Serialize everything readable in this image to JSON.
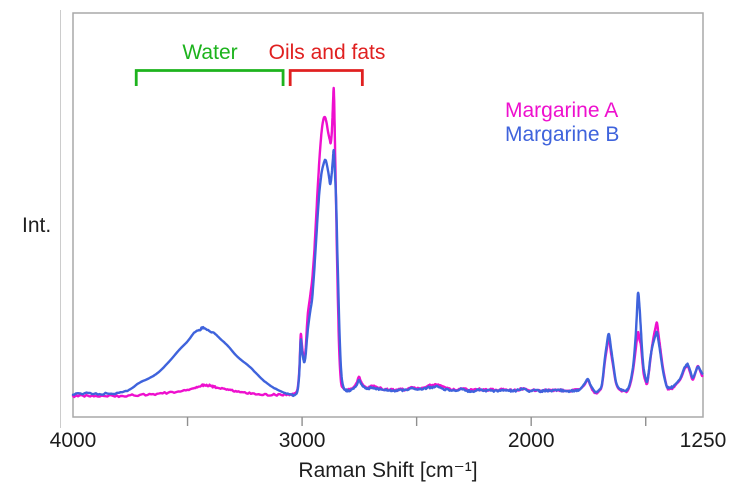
{
  "figure": {
    "background": "#ffffff",
    "plot_border_color": "#a8a8a8",
    "tick_color": "#8f8f8f",
    "text_color": "#1e1e1e",
    "side_rule_color": "#cccccc"
  },
  "annotations": {
    "water": {
      "label": "Water",
      "color": "#1db31d",
      "range_cm1": [
        3724,
        3083
      ]
    },
    "oils_fats": {
      "label": "Oils and fats",
      "color": "#e02020",
      "range_cm1": [
        3052,
        2737
      ]
    }
  },
  "legend": {
    "position": "upper-right",
    "items": [
      {
        "label": "Margarine A",
        "color": "#ee10ce"
      },
      {
        "label": "Margarine B",
        "color": "#3f63dc"
      }
    ]
  },
  "chart_data": {
    "type": "line",
    "title": "",
    "xlabel": "Raman Shift [cm⁻¹]",
    "ylabel": "Int.",
    "grid": false,
    "x_axis": {
      "min": 1250,
      "max": 4000,
      "reversed": true,
      "labeled_ticks": [
        4000,
        3000,
        2000,
        1250
      ],
      "minor_ticks": [
        3500,
        3000,
        2500,
        2000,
        1500
      ]
    },
    "y_axis": {
      "min": 0,
      "max": 105,
      "ticks": "none",
      "note": "relative intensity, % of Margarine A max at 2862 cm-1"
    },
    "series": [
      {
        "name": "Margarine A",
        "color": "#ee10ce",
        "noise_seed": 3,
        "points": [
          [
            4000,
            0.2
          ],
          [
            3950,
            0.4
          ],
          [
            3900,
            0.2
          ],
          [
            3850,
            0.4
          ],
          [
            3800,
            0.3
          ],
          [
            3750,
            0.5
          ],
          [
            3700,
            0.7
          ],
          [
            3650,
            0.9
          ],
          [
            3600,
            1.3
          ],
          [
            3550,
            1.7
          ],
          [
            3500,
            2.3
          ],
          [
            3470,
            2.9
          ],
          [
            3445,
            3.5
          ],
          [
            3425,
            3.9
          ],
          [
            3400,
            3.6
          ],
          [
            3380,
            3.2
          ],
          [
            3350,
            2.8
          ],
          [
            3320,
            2.3
          ],
          [
            3290,
            1.9
          ],
          [
            3250,
            1.4
          ],
          [
            3210,
            1.1
          ],
          [
            3170,
            0.9
          ],
          [
            3130,
            0.7
          ],
          [
            3090,
            0.7
          ],
          [
            3050,
            0.9
          ],
          [
            3034,
            1.1
          ],
          [
            3020,
            2.6
          ],
          [
            3012,
            9
          ],
          [
            3006,
            20.1
          ],
          [
            3001,
            17
          ],
          [
            2995,
            13.5
          ],
          [
            2990,
            12.6
          ],
          [
            2984,
            16
          ],
          [
            2976,
            26
          ],
          [
            2966,
            32
          ],
          [
            2956,
            38
          ],
          [
            2946,
            48
          ],
          [
            2936,
            62
          ],
          [
            2926,
            75
          ],
          [
            2916,
            85
          ],
          [
            2908,
            89.5
          ],
          [
            2901,
            90.6
          ],
          [
            2894,
            89
          ],
          [
            2886,
            85.5
          ],
          [
            2879,
            83.2
          ],
          [
            2875,
            82.2
          ],
          [
            2870,
            86
          ],
          [
            2866,
            93
          ],
          [
            2862,
            100
          ],
          [
            2859,
            92
          ],
          [
            2855,
            76
          ],
          [
            2850,
            55
          ],
          [
            2845,
            36
          ],
          [
            2838,
            15
          ],
          [
            2830,
            4.8
          ],
          [
            2820,
            2.9
          ],
          [
            2808,
            2.3
          ],
          [
            2795,
            2.4
          ],
          [
            2778,
            3.0
          ],
          [
            2762,
            4.6
          ],
          [
            2752,
            6.5
          ],
          [
            2742,
            4.8
          ],
          [
            2730,
            3.6
          ],
          [
            2715,
            3.0
          ],
          [
            2700,
            3.3
          ],
          [
            2686,
            3.6
          ],
          [
            2665,
            3.0
          ],
          [
            2645,
            2.6
          ],
          [
            2620,
            2.4
          ],
          [
            2595,
            2.3
          ],
          [
            2570,
            2.4
          ],
          [
            2545,
            2.5
          ],
          [
            2520,
            3.2
          ],
          [
            2498,
            2.7
          ],
          [
            2476,
            2.9
          ],
          [
            2452,
            3.5
          ],
          [
            2432,
            3.9
          ],
          [
            2405,
            3.9
          ],
          [
            2380,
            3.2
          ],
          [
            2352,
            2.6
          ],
          [
            2326,
            2.3
          ],
          [
            2304,
            2.7
          ],
          [
            2280,
            2.4
          ],
          [
            2255,
            2.3
          ],
          [
            2230,
            2.5
          ],
          [
            2205,
            2.2
          ],
          [
            2180,
            2.4
          ],
          [
            2155,
            2.3
          ],
          [
            2130,
            2.4
          ],
          [
            2105,
            2.3
          ],
          [
            2080,
            2.2
          ],
          [
            2055,
            2.4
          ],
          [
            2030,
            2.7
          ],
          [
            2008,
            2.1
          ],
          [
            1985,
            2.2
          ],
          [
            1960,
            2.0
          ],
          [
            1935,
            2.2
          ],
          [
            1910,
            2.1
          ],
          [
            1885,
            2.3
          ],
          [
            1860,
            2.1
          ],
          [
            1835,
            2.0
          ],
          [
            1812,
            2.2
          ],
          [
            1790,
            2.4
          ],
          [
            1768,
            3.9
          ],
          [
            1753,
            5.5
          ],
          [
            1742,
            3.8
          ],
          [
            1733,
            2.4
          ],
          [
            1719,
            1.2
          ],
          [
            1703,
            2.0
          ],
          [
            1691,
            3.8
          ],
          [
            1679,
            11.0
          ],
          [
            1669,
            16.0
          ],
          [
            1661,
            19.1
          ],
          [
            1652,
            14.5
          ],
          [
            1643,
            10.4
          ],
          [
            1630,
            4.6
          ],
          [
            1614,
            2.3
          ],
          [
            1596,
            2.1
          ],
          [
            1579,
            2.0
          ],
          [
            1564,
            5.2
          ],
          [
            1552,
            10.4
          ],
          [
            1542,
            16.5
          ],
          [
            1534,
            21.0
          ],
          [
            1527,
            18.5
          ],
          [
            1521,
            16.8
          ],
          [
            1514,
            11.0
          ],
          [
            1508,
            7.1
          ],
          [
            1500,
            5.0
          ],
          [
            1494,
            4.3
          ],
          [
            1487,
            7.5
          ],
          [
            1481,
            11.3
          ],
          [
            1472,
            16.5
          ],
          [
            1464,
            20.1
          ],
          [
            1457,
            22.5
          ],
          [
            1451,
            24.0
          ],
          [
            1444,
            20.0
          ],
          [
            1438,
            16.8
          ],
          [
            1429,
            11.5
          ],
          [
            1421,
            7.8
          ],
          [
            1411,
            4.2
          ],
          [
            1403,
            2.7
          ],
          [
            1392,
            2.8
          ],
          [
            1381,
            3.0
          ],
          [
            1366,
            4.2
          ],
          [
            1351,
            5.5
          ],
          [
            1341,
            7.0
          ],
          [
            1333,
            8.7
          ],
          [
            1323,
            9.8
          ],
          [
            1316,
            10.0
          ],
          [
            1306,
            7.8
          ],
          [
            1295,
            5.6
          ],
          [
            1284,
            7.6
          ],
          [
            1273,
            10.0
          ],
          [
            1263,
            8.5
          ],
          [
            1253,
            6.6
          ]
        ]
      },
      {
        "name": "Margarine B",
        "color": "#3f63dc",
        "noise_seed": 11,
        "points": [
          [
            4000,
            1.0
          ],
          [
            3950,
            1.2
          ],
          [
            3900,
            1.0
          ],
          [
            3850,
            1.2
          ],
          [
            3800,
            1.4
          ],
          [
            3755,
            2.3
          ],
          [
            3712,
            4.5
          ],
          [
            3662,
            6.3
          ],
          [
            3625,
            8.1
          ],
          [
            3580,
            11.5
          ],
          [
            3537,
            15.2
          ],
          [
            3500,
            18.0
          ],
          [
            3472,
            20.7
          ],
          [
            3446,
            21.9
          ],
          [
            3428,
            22.3
          ],
          [
            3402,
            21.2
          ],
          [
            3384,
            20.7
          ],
          [
            3352,
            18.5
          ],
          [
            3320,
            16.2
          ],
          [
            3282,
            13.0
          ],
          [
            3232,
            10.0
          ],
          [
            3202,
            7.8
          ],
          [
            3166,
            5.2
          ],
          [
            3122,
            2.9
          ],
          [
            3078,
            1.4
          ],
          [
            3050,
            0.8
          ],
          [
            3034,
            0.6
          ],
          [
            3020,
            2.0
          ],
          [
            3012,
            8
          ],
          [
            3006,
            18.4
          ],
          [
            3001,
            15.5
          ],
          [
            2995,
            12.5
          ],
          [
            2990,
            11.3
          ],
          [
            2984,
            14
          ],
          [
            2976,
            21
          ],
          [
            2966,
            27
          ],
          [
            2956,
            32
          ],
          [
            2946,
            42
          ],
          [
            2936,
            54
          ],
          [
            2926,
            65
          ],
          [
            2916,
            72
          ],
          [
            2906,
            75.5
          ],
          [
            2898,
            76.7
          ],
          [
            2890,
            74.5
          ],
          [
            2882,
            71
          ],
          [
            2877,
            68.9
          ],
          [
            2871,
            72
          ],
          [
            2866,
            76.5
          ],
          [
            2862,
            79.9
          ],
          [
            2858,
            75
          ],
          [
            2851,
            62
          ],
          [
            2845,
            44
          ],
          [
            2837,
            22
          ],
          [
            2829,
            8
          ],
          [
            2820,
            3.3
          ],
          [
            2810,
            2.3
          ],
          [
            2795,
            2.0
          ],
          [
            2778,
            2.6
          ],
          [
            2762,
            3.8
          ],
          [
            2752,
            5.5
          ],
          [
            2742,
            4.2
          ],
          [
            2730,
            3.2
          ],
          [
            2715,
            2.7
          ],
          [
            2700,
            3.0
          ],
          [
            2686,
            2.9
          ],
          [
            2665,
            2.6
          ],
          [
            2645,
            2.3
          ],
          [
            2620,
            2.2
          ],
          [
            2595,
            2.1
          ],
          [
            2570,
            2.3
          ],
          [
            2545,
            2.2
          ],
          [
            2520,
            2.9
          ],
          [
            2498,
            2.4
          ],
          [
            2476,
            2.6
          ],
          [
            2452,
            3.0
          ],
          [
            2432,
            3.2
          ],
          [
            2405,
            3.2
          ],
          [
            2380,
            2.6
          ],
          [
            2352,
            2.2
          ],
          [
            2326,
            1.9
          ],
          [
            2304,
            2.6
          ],
          [
            2280,
            2.0
          ],
          [
            2255,
            1.9
          ],
          [
            2230,
            2.3
          ],
          [
            2205,
            2.0
          ],
          [
            2180,
            2.2
          ],
          [
            2155,
            1.9
          ],
          [
            2130,
            2.2
          ],
          [
            2105,
            2.3
          ],
          [
            2080,
            2.0
          ],
          [
            2055,
            2.2
          ],
          [
            2030,
            2.6
          ],
          [
            2008,
            1.9
          ],
          [
            1985,
            2.1
          ],
          [
            1960,
            1.9
          ],
          [
            1935,
            2.1
          ],
          [
            1910,
            2.0
          ],
          [
            1885,
            2.3
          ],
          [
            1860,
            2.0
          ],
          [
            1835,
            1.9
          ],
          [
            1812,
            2.1
          ],
          [
            1790,
            2.3
          ],
          [
            1768,
            4.2
          ],
          [
            1753,
            5.8
          ],
          [
            1742,
            4.0
          ],
          [
            1733,
            2.9
          ],
          [
            1719,
            1.6
          ],
          [
            1703,
            2.3
          ],
          [
            1691,
            4.2
          ],
          [
            1679,
            12.0
          ],
          [
            1669,
            17.5
          ],
          [
            1661,
            20.4
          ],
          [
            1652,
            16.0
          ],
          [
            1643,
            11.3
          ],
          [
            1630,
            5.0
          ],
          [
            1614,
            2.6
          ],
          [
            1596,
            2.3
          ],
          [
            1579,
            2.4
          ],
          [
            1564,
            6.0
          ],
          [
            1552,
            12.0
          ],
          [
            1542,
            22.0
          ],
          [
            1534,
            33.5
          ],
          [
            1527,
            29.0
          ],
          [
            1521,
            21.7
          ],
          [
            1514,
            13.0
          ],
          [
            1508,
            8.7
          ],
          [
            1500,
            6.0
          ],
          [
            1494,
            5.0
          ],
          [
            1487,
            8.0
          ],
          [
            1481,
            12.0
          ],
          [
            1472,
            16.0
          ],
          [
            1464,
            18.4
          ],
          [
            1457,
            20.0
          ],
          [
            1451,
            21.0
          ],
          [
            1444,
            18.0
          ],
          [
            1438,
            15.2
          ],
          [
            1429,
            10.5
          ],
          [
            1421,
            7.1
          ],
          [
            1411,
            4.0
          ],
          [
            1403,
            3.0
          ],
          [
            1392,
            3.1
          ],
          [
            1381,
            3.3
          ],
          [
            1366,
            4.5
          ],
          [
            1351,
            5.8
          ],
          [
            1341,
            7.5
          ],
          [
            1333,
            9.1
          ],
          [
            1323,
            10.2
          ],
          [
            1316,
            10.4
          ],
          [
            1306,
            8.5
          ],
          [
            1295,
            6.2
          ],
          [
            1284,
            7.8
          ],
          [
            1273,
            9.7
          ],
          [
            1263,
            8.8
          ],
          [
            1253,
            7.5
          ]
        ]
      }
    ]
  }
}
